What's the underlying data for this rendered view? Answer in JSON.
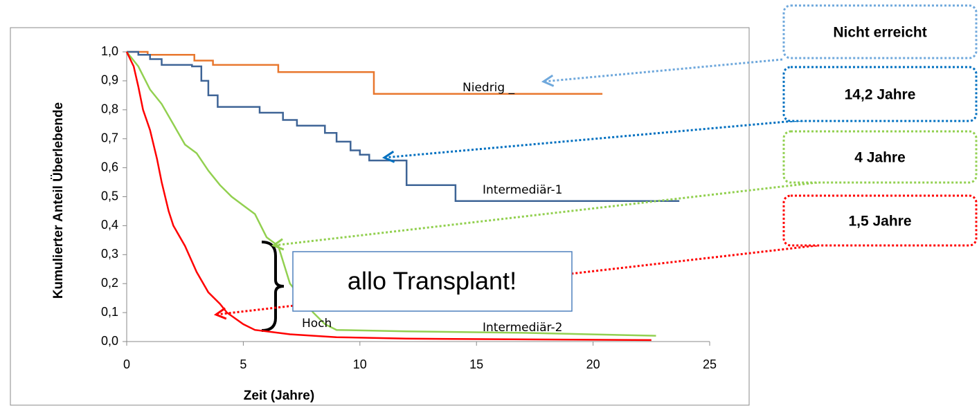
{
  "chart_data": {
    "type": "line",
    "x_label": "Zeit (Jahre)",
    "y_label": "Kumulierter Anteil Überlebende",
    "xlim": [
      0,
      25
    ],
    "xticks": [
      0,
      5,
      10,
      15,
      20,
      25
    ],
    "ylim": [
      0,
      1.0
    ],
    "yticks": [
      {
        "value": 0,
        "label": "0,0"
      },
      {
        "value": 0.1,
        "label": "0,1"
      },
      {
        "value": 0.2,
        "label": "0,2"
      },
      {
        "value": 0.3,
        "label": "0,3"
      },
      {
        "value": 0.4,
        "label": "0,4"
      },
      {
        "value": 0.5,
        "label": "0,5"
      },
      {
        "value": 0.6,
        "label": "0,6"
      },
      {
        "value": 0.7,
        "label": "0,7"
      },
      {
        "value": 0.8,
        "label": "0,8"
      },
      {
        "value": 0.9,
        "label": "0,9"
      },
      {
        "value": 1.0,
        "label": "1,0"
      }
    ],
    "grid": false,
    "series": [
      {
        "name": "Niedrig _",
        "color": "#E8772E",
        "x": [
          0,
          0.9,
          0.9,
          2.9,
          2.9,
          3.7,
          3.7,
          6.5,
          6.5,
          10.6,
          10.6,
          20.4
        ],
        "values": [
          1.0,
          1.0,
          0.99,
          0.99,
          0.97,
          0.97,
          0.955,
          0.955,
          0.93,
          0.93,
          0.855,
          0.855
        ]
      },
      {
        "name": "Intermediär-1",
        "color": "#3E6496",
        "x": [
          0,
          0.5,
          0.5,
          1.0,
          1.0,
          1.5,
          1.5,
          2.8,
          2.8,
          3.2,
          3.2,
          3.5,
          3.5,
          3.9,
          3.9,
          5.7,
          5.7,
          6.7,
          6.7,
          7.3,
          7.3,
          8.5,
          8.5,
          9.0,
          9.0,
          9.6,
          9.6,
          10.0,
          10.0,
          10.4,
          10.4,
          12.0,
          12.0,
          14.1,
          14.1,
          23.7
        ],
        "values": [
          1.0,
          1.0,
          0.99,
          0.99,
          0.975,
          0.975,
          0.955,
          0.955,
          0.95,
          0.95,
          0.9,
          0.9,
          0.85,
          0.85,
          0.81,
          0.81,
          0.79,
          0.79,
          0.765,
          0.765,
          0.745,
          0.745,
          0.72,
          0.72,
          0.69,
          0.69,
          0.66,
          0.66,
          0.645,
          0.645,
          0.625,
          0.625,
          0.54,
          0.54,
          0.485,
          0.485
        ]
      },
      {
        "name": "Intermediär-2",
        "color": "#92D050",
        "x": [
          0,
          0.5,
          1,
          1.5,
          2,
          2.5,
          3,
          3.5,
          4,
          4.5,
          5,
          5.5,
          6,
          6.5,
          7,
          7.5,
          8,
          8.5,
          9,
          12,
          17,
          22.7
        ],
        "values": [
          1.0,
          0.95,
          0.87,
          0.82,
          0.75,
          0.68,
          0.65,
          0.59,
          0.54,
          0.5,
          0.47,
          0.44,
          0.36,
          0.33,
          0.2,
          0.15,
          0.1,
          0.06,
          0.04,
          0.035,
          0.03,
          0.02
        ]
      },
      {
        "name": "Hoch",
        "color": "#FF0000",
        "x": [
          0,
          0.3,
          0.5,
          0.7,
          1,
          1.3,
          1.5,
          1.8,
          2,
          2.5,
          3,
          3.5,
          4,
          4.3,
          5,
          5.5,
          6,
          7,
          9,
          12,
          22.5
        ],
        "values": [
          1.0,
          0.95,
          0.88,
          0.8,
          0.73,
          0.63,
          0.55,
          0.45,
          0.4,
          0.33,
          0.24,
          0.17,
          0.13,
          0.1,
          0.06,
          0.04,
          0.035,
          0.025,
          0.015,
          0.01,
          0.005
        ]
      }
    ],
    "annotations": [
      {
        "text": "Nicht erreicht",
        "color": "#6FA8DC"
      },
      {
        "text": "14,2 Jahre",
        "color": "#0070C0"
      },
      {
        "text": "4 Jahre",
        "color": "#92D050"
      },
      {
        "text": "1,5 Jahre",
        "color": "#FF0000"
      },
      {
        "text": "allo Transplant!",
        "color": "#4F81BD"
      }
    ]
  }
}
